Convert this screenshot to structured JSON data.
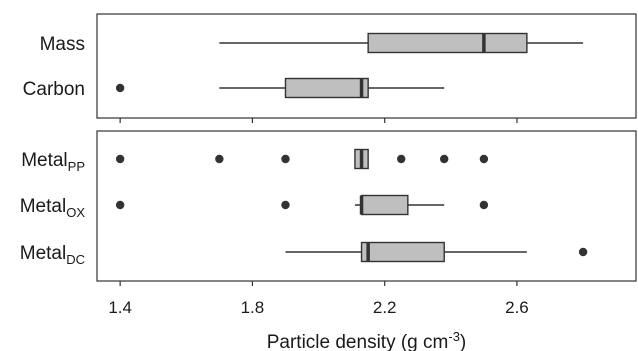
{
  "chart_data": {
    "type": "boxplot",
    "xlabel_parts": {
      "main": "Particle density (g cm",
      "sup": "-3",
      "close": ")"
    },
    "xlim": [
      1.33,
      2.96
    ],
    "xticks": [
      {
        "value": 1.4,
        "label": "1.4"
      },
      {
        "value": 1.8,
        "label": "1.8"
      },
      {
        "value": 2.2,
        "label": "2.2"
      },
      {
        "value": 2.6,
        "label": "2.6"
      }
    ],
    "grid": false,
    "panels": [
      {
        "series": [
          {
            "label_main": "Mass",
            "label_sub": "",
            "whisker_low": 1.7,
            "q1": 2.15,
            "median": 2.5,
            "q3": 2.63,
            "whisker_high": 2.8,
            "outliers": []
          },
          {
            "label_main": "Carbon",
            "label_sub": "",
            "whisker_low": 1.7,
            "q1": 1.9,
            "median": 2.13,
            "q3": 2.15,
            "whisker_high": 2.38,
            "outliers": [
              1.4
            ]
          }
        ]
      },
      {
        "series": [
          {
            "label_main": "Metal",
            "label_sub": "PP",
            "whisker_low": 2.11,
            "q1": 2.11,
            "median": 2.13,
            "q3": 2.15,
            "whisker_high": 2.15,
            "outliers": [
              1.4,
              1.7,
              1.9,
              2.25,
              2.38,
              2.5
            ]
          },
          {
            "label_main": "Metal",
            "label_sub": "OX",
            "whisker_low": 2.11,
            "q1": 2.13,
            "median": 2.13,
            "q3": 2.27,
            "whisker_high": 2.38,
            "outliers": [
              1.4,
              1.9,
              2.5
            ]
          },
          {
            "label_main": "Metal",
            "label_sub": "DC",
            "whisker_low": 1.9,
            "q1": 2.13,
            "median": 2.15,
            "q3": 2.38,
            "whisker_high": 2.63,
            "outliers": [
              2.8
            ]
          }
        ]
      }
    ]
  }
}
